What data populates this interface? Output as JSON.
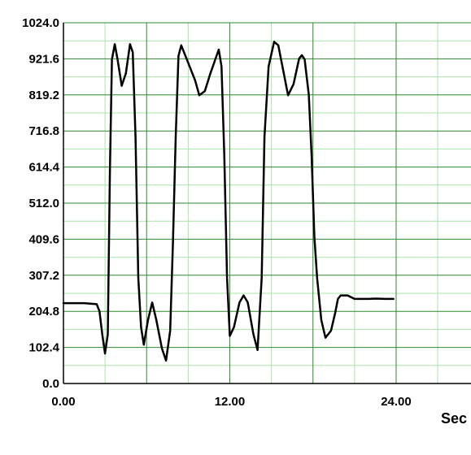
{
  "chart_data": {
    "type": "line",
    "title": "",
    "xlabel": "Sec",
    "ylabel": "",
    "xlim": [
      0,
      29.4
    ],
    "ylim": [
      0,
      1024
    ],
    "x_ticks": [
      0,
      12,
      24
    ],
    "x_tick_labels": [
      "0.00",
      "12.00",
      "24.00"
    ],
    "y_ticks": [
      0,
      102.4,
      204.8,
      307.2,
      409.6,
      512,
      614.4,
      716.8,
      819.2,
      921.6,
      1024
    ],
    "y_tick_labels": [
      "0.0",
      "102.4",
      "204.8",
      "307.2",
      "409.6",
      "512.0",
      "614.4",
      "716.8",
      "819.2",
      "921.6",
      "1024.0"
    ],
    "grid": true,
    "colors": {
      "background": "#ffffff",
      "major_grid": "#2e8b2e",
      "minor_grid": "#a8e6a8",
      "axis": "#000000",
      "line": "#000000"
    },
    "series": [
      {
        "values": [
          [
            0.0,
            228
          ],
          [
            1.5,
            228
          ],
          [
            2.4,
            225
          ],
          [
            2.6,
            205
          ],
          [
            2.8,
            140
          ],
          [
            3.0,
            85
          ],
          [
            3.2,
            140
          ],
          [
            3.35,
            600
          ],
          [
            3.5,
            920
          ],
          [
            3.7,
            963
          ],
          [
            3.9,
            920
          ],
          [
            4.2,
            845
          ],
          [
            4.5,
            880
          ],
          [
            4.8,
            963
          ],
          [
            5.0,
            940
          ],
          [
            5.2,
            700
          ],
          [
            5.4,
            300
          ],
          [
            5.6,
            160
          ],
          [
            5.8,
            110
          ],
          [
            6.1,
            180
          ],
          [
            6.4,
            230
          ],
          [
            6.7,
            180
          ],
          [
            7.1,
            100
          ],
          [
            7.4,
            65
          ],
          [
            7.7,
            150
          ],
          [
            7.9,
            400
          ],
          [
            8.1,
            700
          ],
          [
            8.3,
            930
          ],
          [
            8.5,
            960
          ],
          [
            9.0,
            910
          ],
          [
            9.5,
            860
          ],
          [
            9.8,
            818
          ],
          [
            10.2,
            830
          ],
          [
            10.6,
            880
          ],
          [
            11.2,
            948
          ],
          [
            11.4,
            900
          ],
          [
            11.6,
            650
          ],
          [
            11.8,
            300
          ],
          [
            12.0,
            135
          ],
          [
            12.3,
            160
          ],
          [
            12.7,
            230
          ],
          [
            13.0,
            250
          ],
          [
            13.3,
            230
          ],
          [
            13.7,
            140
          ],
          [
            14.0,
            95
          ],
          [
            14.3,
            300
          ],
          [
            14.5,
            700
          ],
          [
            14.8,
            900
          ],
          [
            15.2,
            970
          ],
          [
            15.5,
            960
          ],
          [
            15.8,
            900
          ],
          [
            16.2,
            818
          ],
          [
            16.6,
            850
          ],
          [
            17.0,
            922
          ],
          [
            17.2,
            932
          ],
          [
            17.4,
            920
          ],
          [
            17.7,
            820
          ],
          [
            17.9,
            650
          ],
          [
            18.1,
            420
          ],
          [
            18.3,
            300
          ],
          [
            18.6,
            180
          ],
          [
            18.9,
            130
          ],
          [
            19.3,
            150
          ],
          [
            19.6,
            200
          ],
          [
            19.8,
            240
          ],
          [
            20.0,
            250
          ],
          [
            20.5,
            250
          ],
          [
            21.0,
            240
          ],
          [
            21.5,
            240
          ],
          [
            22.0,
            240
          ],
          [
            22.5,
            241
          ],
          [
            23.2,
            240
          ],
          [
            23.8,
            240
          ]
        ]
      }
    ]
  }
}
